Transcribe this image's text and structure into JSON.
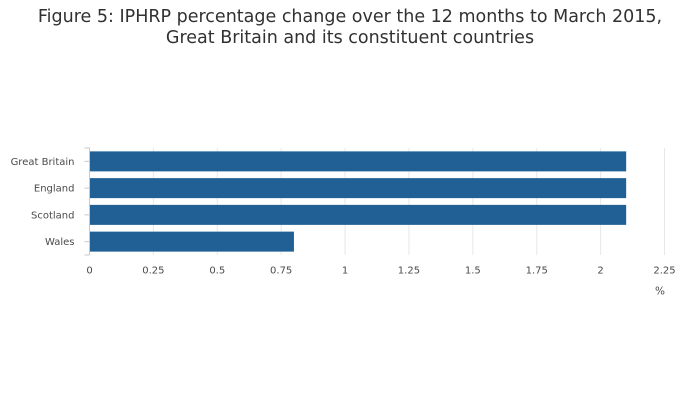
{
  "chart_data": {
    "type": "bar",
    "orientation": "horizontal",
    "title_lines": [
      "Figure 5: IPHRP percentage change over the 12 months to March 2015,",
      "Great Britain and its constituent countries"
    ],
    "categories": [
      "Great Britain",
      "England",
      "Scotland",
      "Wales"
    ],
    "values": [
      2.1,
      2.1,
      2.1,
      0.8
    ],
    "xlabel": "%",
    "ylabel": "",
    "xlim": [
      0,
      2.25
    ],
    "x_ticks": [
      0,
      0.25,
      0.5,
      0.75,
      1,
      1.25,
      1.5,
      1.75,
      2,
      2.25
    ],
    "x_tick_labels": [
      "0",
      "0.25",
      "0.5",
      "0.75",
      "1",
      "1.25",
      "1.5",
      "1.75",
      "2",
      "2.25"
    ],
    "grid": true,
    "legend": "none"
  },
  "colors": {
    "bar": "#206095",
    "grid": "#e8e8e8",
    "axis": "#c8c8c8",
    "text": "#4a4a4a",
    "title": "#323132"
  }
}
